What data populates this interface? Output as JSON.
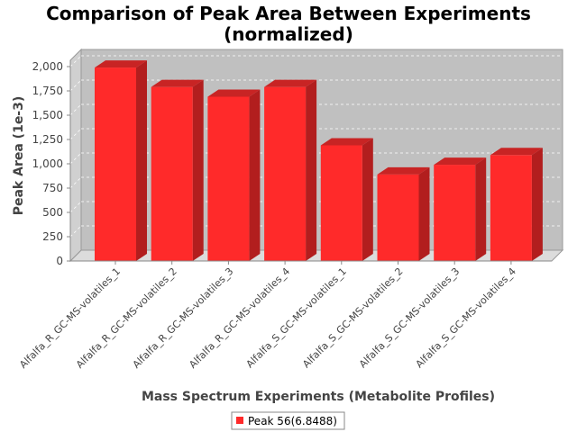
{
  "chart_data": {
    "type": "bar",
    "title_line1": "Comparison of Peak Area Between Experiments",
    "title_line2": "(normalized)",
    "xlabel": "Mass Spectrum Experiments (Metabolite Profiles)",
    "ylabel": "Peak Area (1e-3)",
    "ylim": [
      0,
      2000
    ],
    "yticks": [
      0,
      250,
      500,
      750,
      1000,
      1250,
      1500,
      1750,
      2000
    ],
    "ytick_labels": [
      "0",
      "250",
      "500",
      "750",
      "1,000",
      "1,250",
      "1,500",
      "1,750",
      "2,000"
    ],
    "categories": [
      "Alfalfa_R_GC-MS-volatiles_1",
      "Alfalfa_R_GC-MS-volatiles_2",
      "Alfalfa_R_GC-MS-volatiles_3",
      "Alfalfa_R_GC-MS-volatiles_4",
      "Alfalfa_S_GC-MS-volatiles_1",
      "Alfalfa_S_GC-MS-volatiles_2",
      "Alfalfa_S_GC-MS-volatiles_3",
      "Alfalfa_S_GC-MS-volatiles_4"
    ],
    "series": [
      {
        "name": "Peak 56(6.8488)",
        "color": "#ff2a2a",
        "values": [
          1990,
          1790,
          1690,
          1790,
          1190,
          890,
          990,
          1090
        ]
      }
    ],
    "grid": true,
    "legend_position": "bottom-center"
  }
}
